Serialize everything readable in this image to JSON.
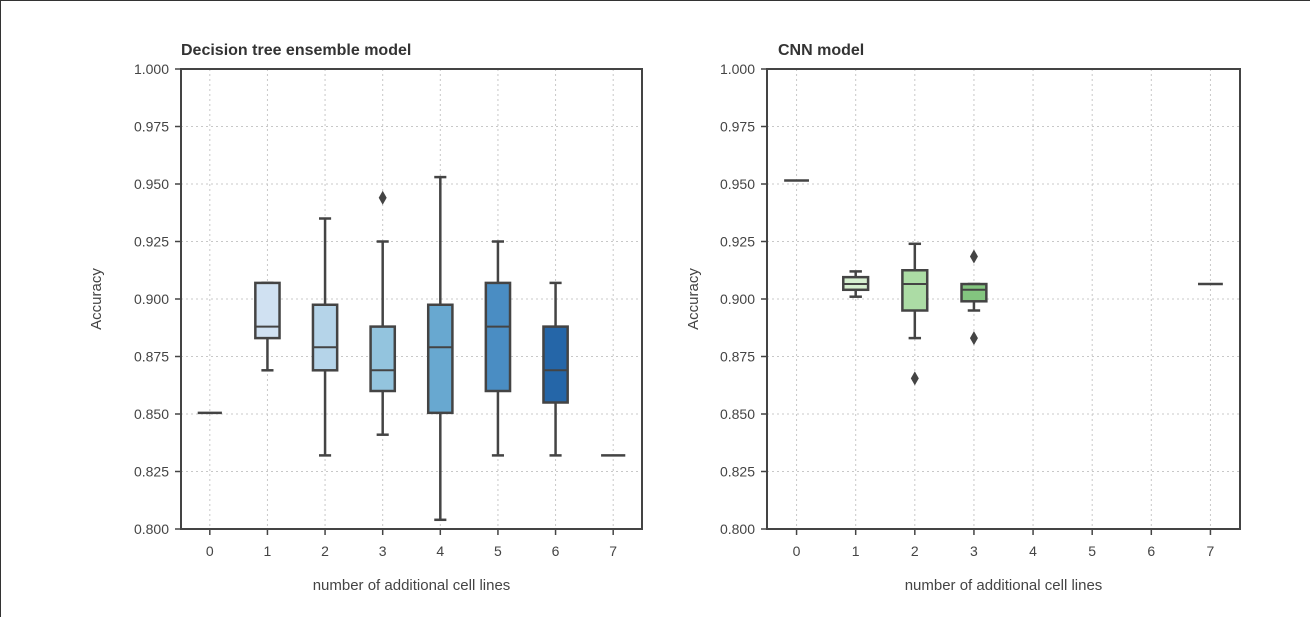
{
  "chart_data": [
    {
      "type": "box",
      "title": "Decision tree ensemble model",
      "xlabel": "number of additional cell lines",
      "ylabel": "Accuracy",
      "ylim": [
        0.8,
        1.0
      ],
      "yticks": [
        "0.800",
        "0.825",
        "0.850",
        "0.875",
        "0.900",
        "0.925",
        "0.950",
        "0.975",
        "1.000"
      ],
      "categories": [
        "0",
        "1",
        "2",
        "3",
        "4",
        "5",
        "6",
        "7"
      ],
      "grid": true,
      "palette": "blues",
      "boxes": [
        {
          "category": "0",
          "whisker_low": 0.8505,
          "q1": 0.8505,
          "median": 0.8505,
          "q3": 0.8505,
          "whisker_high": 0.8505,
          "outliers": [],
          "color": "#f7fbff"
        },
        {
          "category": "1",
          "whisker_low": 0.869,
          "q1": 0.883,
          "median": 0.888,
          "q3": 0.907,
          "whisker_high": 0.907,
          "outliers": [],
          "color": "#d0e1f2"
        },
        {
          "category": "2",
          "whisker_low": 0.832,
          "q1": 0.869,
          "median": 0.879,
          "q3": 0.8975,
          "whisker_high": 0.935,
          "outliers": [],
          "color": "#b5d4e9"
        },
        {
          "category": "3",
          "whisker_low": 0.841,
          "q1": 0.86,
          "median": 0.869,
          "q3": 0.888,
          "whisker_high": 0.925,
          "outliers": [
            0.944
          ],
          "color": "#93c4de"
        },
        {
          "category": "4",
          "whisker_low": 0.804,
          "q1": 0.8505,
          "median": 0.879,
          "q3": 0.8975,
          "whisker_high": 0.953,
          "outliers": [],
          "color": "#68a8d0"
        },
        {
          "category": "5",
          "whisker_low": 0.832,
          "q1": 0.86,
          "median": 0.888,
          "q3": 0.907,
          "whisker_high": 0.925,
          "outliers": [],
          "color": "#4a8dc3"
        },
        {
          "category": "6",
          "whisker_low": 0.832,
          "q1": 0.855,
          "median": 0.869,
          "q3": 0.888,
          "whisker_high": 0.907,
          "outliers": [],
          "color": "#2566a8"
        },
        {
          "category": "7",
          "whisker_low": 0.832,
          "q1": 0.832,
          "median": 0.832,
          "q3": 0.832,
          "whisker_high": 0.832,
          "outliers": [],
          "color": "#08306b"
        }
      ]
    },
    {
      "type": "box",
      "title": "CNN model",
      "xlabel": "number of additional cell lines",
      "ylabel": "Accuracy",
      "ylim": [
        0.8,
        1.0
      ],
      "yticks": [
        "0.800",
        "0.825",
        "0.850",
        "0.875",
        "0.900",
        "0.925",
        "0.950",
        "0.975",
        "1.000"
      ],
      "categories": [
        "0",
        "1",
        "2",
        "3",
        "4",
        "5",
        "6",
        "7"
      ],
      "grid": true,
      "palette": "greens",
      "boxes": [
        {
          "category": "0",
          "whisker_low": 0.9515,
          "q1": 0.9515,
          "median": 0.9515,
          "q3": 0.9515,
          "whisker_high": 0.9515,
          "outliers": [],
          "color": "#f7fcf5"
        },
        {
          "category": "1",
          "whisker_low": 0.901,
          "q1": 0.904,
          "median": 0.9065,
          "q3": 0.9095,
          "whisker_high": 0.912,
          "outliers": [],
          "color": "#d5efcf"
        },
        {
          "category": "2",
          "whisker_low": 0.883,
          "q1": 0.895,
          "median": 0.9065,
          "q3": 0.9125,
          "whisker_high": 0.924,
          "outliers": [
            0.8655
          ],
          "color": "#acdca5"
        },
        {
          "category": "3",
          "whisker_low": 0.895,
          "q1": 0.899,
          "median": 0.904,
          "q3": 0.9065,
          "whisker_high": 0.9065,
          "outliers": [
            0.9185,
            0.883
          ],
          "color": "#83c57f"
        },
        {
          "category": "7",
          "whisker_low": 0.9065,
          "q1": 0.9065,
          "median": 0.9065,
          "q3": 0.9065,
          "whisker_high": 0.9065,
          "outliers": [],
          "color": "#00441b"
        }
      ]
    }
  ]
}
